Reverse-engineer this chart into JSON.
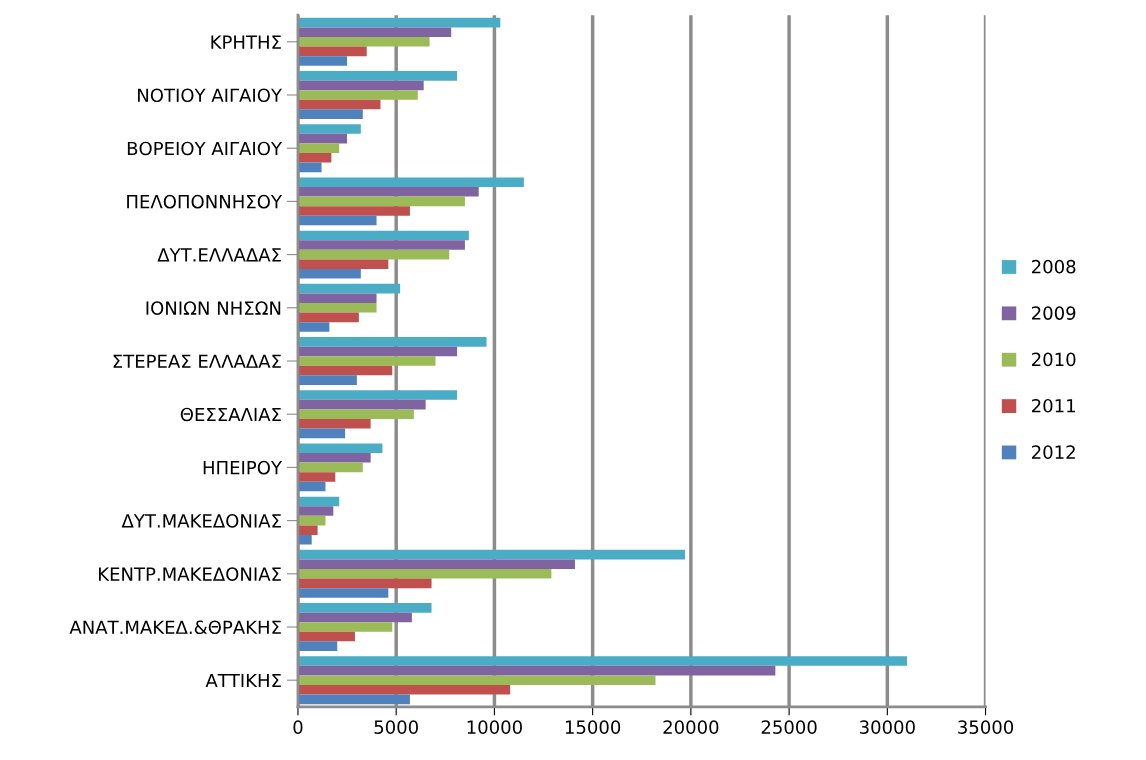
{
  "chart_data": {
    "type": "bar",
    "orientation": "horizontal",
    "categories": [
      "ΚΡΗΤΗΣ",
      "ΝΟΤΙΟΥ ΑΙΓΑΙΟΥ",
      "ΒΟΡΕΙΟΥ ΑΙΓΑΙΟΥ",
      "ΠΕΛΟΠΟΝΝΗΣΟΥ",
      "ΔΥΤ.ΕΛΛΑΔΑΣ",
      "ΙΟΝΙΩΝ ΝΗΣΩΝ",
      "ΣΤΕΡΕΑΣ ΕΛΛΑΔΑΣ",
      "ΘΕΣΣΑΛΙΑΣ",
      "ΗΠΕΙΡΟΥ",
      "ΔΥΤ.ΜΑΚΕΔΟΝΙΑΣ",
      "ΚΕΝΤΡ.ΜΑΚΕΔΟΝΙΑΣ",
      "ΑΝΑΤ.ΜΑΚΕΔ.&ΘΡΑΚΗΣ",
      "ΑΤΤΙΚΗΣ"
    ],
    "series": [
      {
        "name": "2008",
        "color": "#4bacc6",
        "values": [
          10300,
          8100,
          3200,
          11500,
          8700,
          5200,
          9600,
          8100,
          4300,
          2100,
          19700,
          6800,
          31000
        ]
      },
      {
        "name": "2009",
        "color": "#8064a2",
        "values": [
          7800,
          6400,
          2500,
          9200,
          8500,
          4000,
          8100,
          6500,
          3700,
          1800,
          14100,
          5800,
          24300
        ]
      },
      {
        "name": "2010",
        "color": "#9bbb59",
        "values": [
          6700,
          6100,
          2100,
          8500,
          7700,
          4000,
          7000,
          5900,
          3300,
          1400,
          12900,
          4800,
          18200
        ]
      },
      {
        "name": "2011",
        "color": "#c0504d",
        "values": [
          3500,
          4200,
          1700,
          5700,
          4600,
          3100,
          4800,
          3700,
          1900,
          1000,
          6800,
          2900,
          10800
        ]
      },
      {
        "name": "2012",
        "color": "#4f81bd",
        "values": [
          2500,
          3300,
          1200,
          4000,
          3200,
          1600,
          3000,
          2400,
          1400,
          700,
          4600,
          2000,
          5700
        ]
      }
    ],
    "xlim": [
      0,
      35000
    ],
    "xticks": [
      0,
      5000,
      10000,
      15000,
      20000,
      25000,
      30000,
      35000
    ],
    "grid": "x",
    "legend": "right"
  }
}
